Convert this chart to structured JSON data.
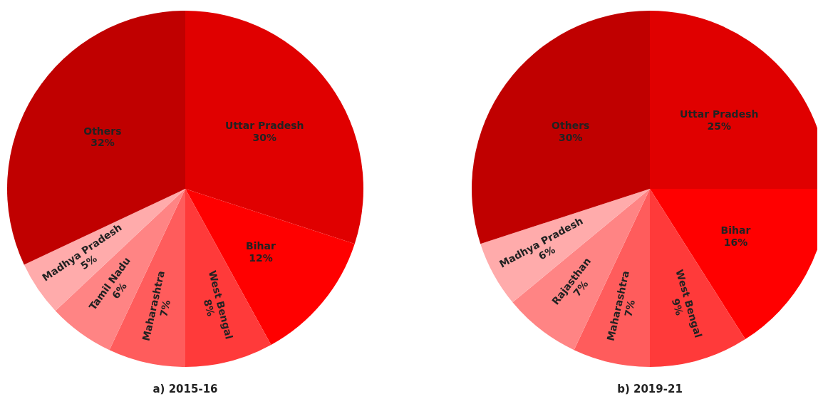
{
  "chart_data": [
    {
      "type": "pie",
      "title": "a) 2015-16",
      "categories": [
        "Uttar Pradesh",
        "Bihar",
        "West Bengal",
        "Maharashtra",
        "Tamil Nadu",
        "Madhya Pradesh",
        "Others"
      ],
      "values": [
        30,
        12,
        8,
        7,
        6,
        5,
        32
      ],
      "value_labels": [
        "30%",
        "12%",
        "8%",
        "7%",
        "6%",
        "5%",
        "32%"
      ],
      "colors": [
        "#e00000",
        "#ff0000",
        "#ff3a3a",
        "#ff5c5c",
        "#ff8484",
        "#ffabab",
        "#c00000"
      ]
    },
    {
      "type": "pie",
      "title": "b) 2019-21",
      "categories": [
        "Uttar Pradesh",
        "Bihar",
        "West Bengal",
        "Maharashtra",
        "Rajasthan",
        "Madhya Pradesh",
        "Others"
      ],
      "values": [
        25,
        16,
        9,
        7,
        7,
        6,
        30
      ],
      "value_labels": [
        "25%",
        "16%",
        "9%",
        "7%",
        "7%",
        "6%",
        "30%"
      ],
      "colors": [
        "#e00000",
        "#ff0000",
        "#ff3a3a",
        "#ff5c5c",
        "#ff8484",
        "#ffabab",
        "#c00000"
      ]
    }
  ]
}
